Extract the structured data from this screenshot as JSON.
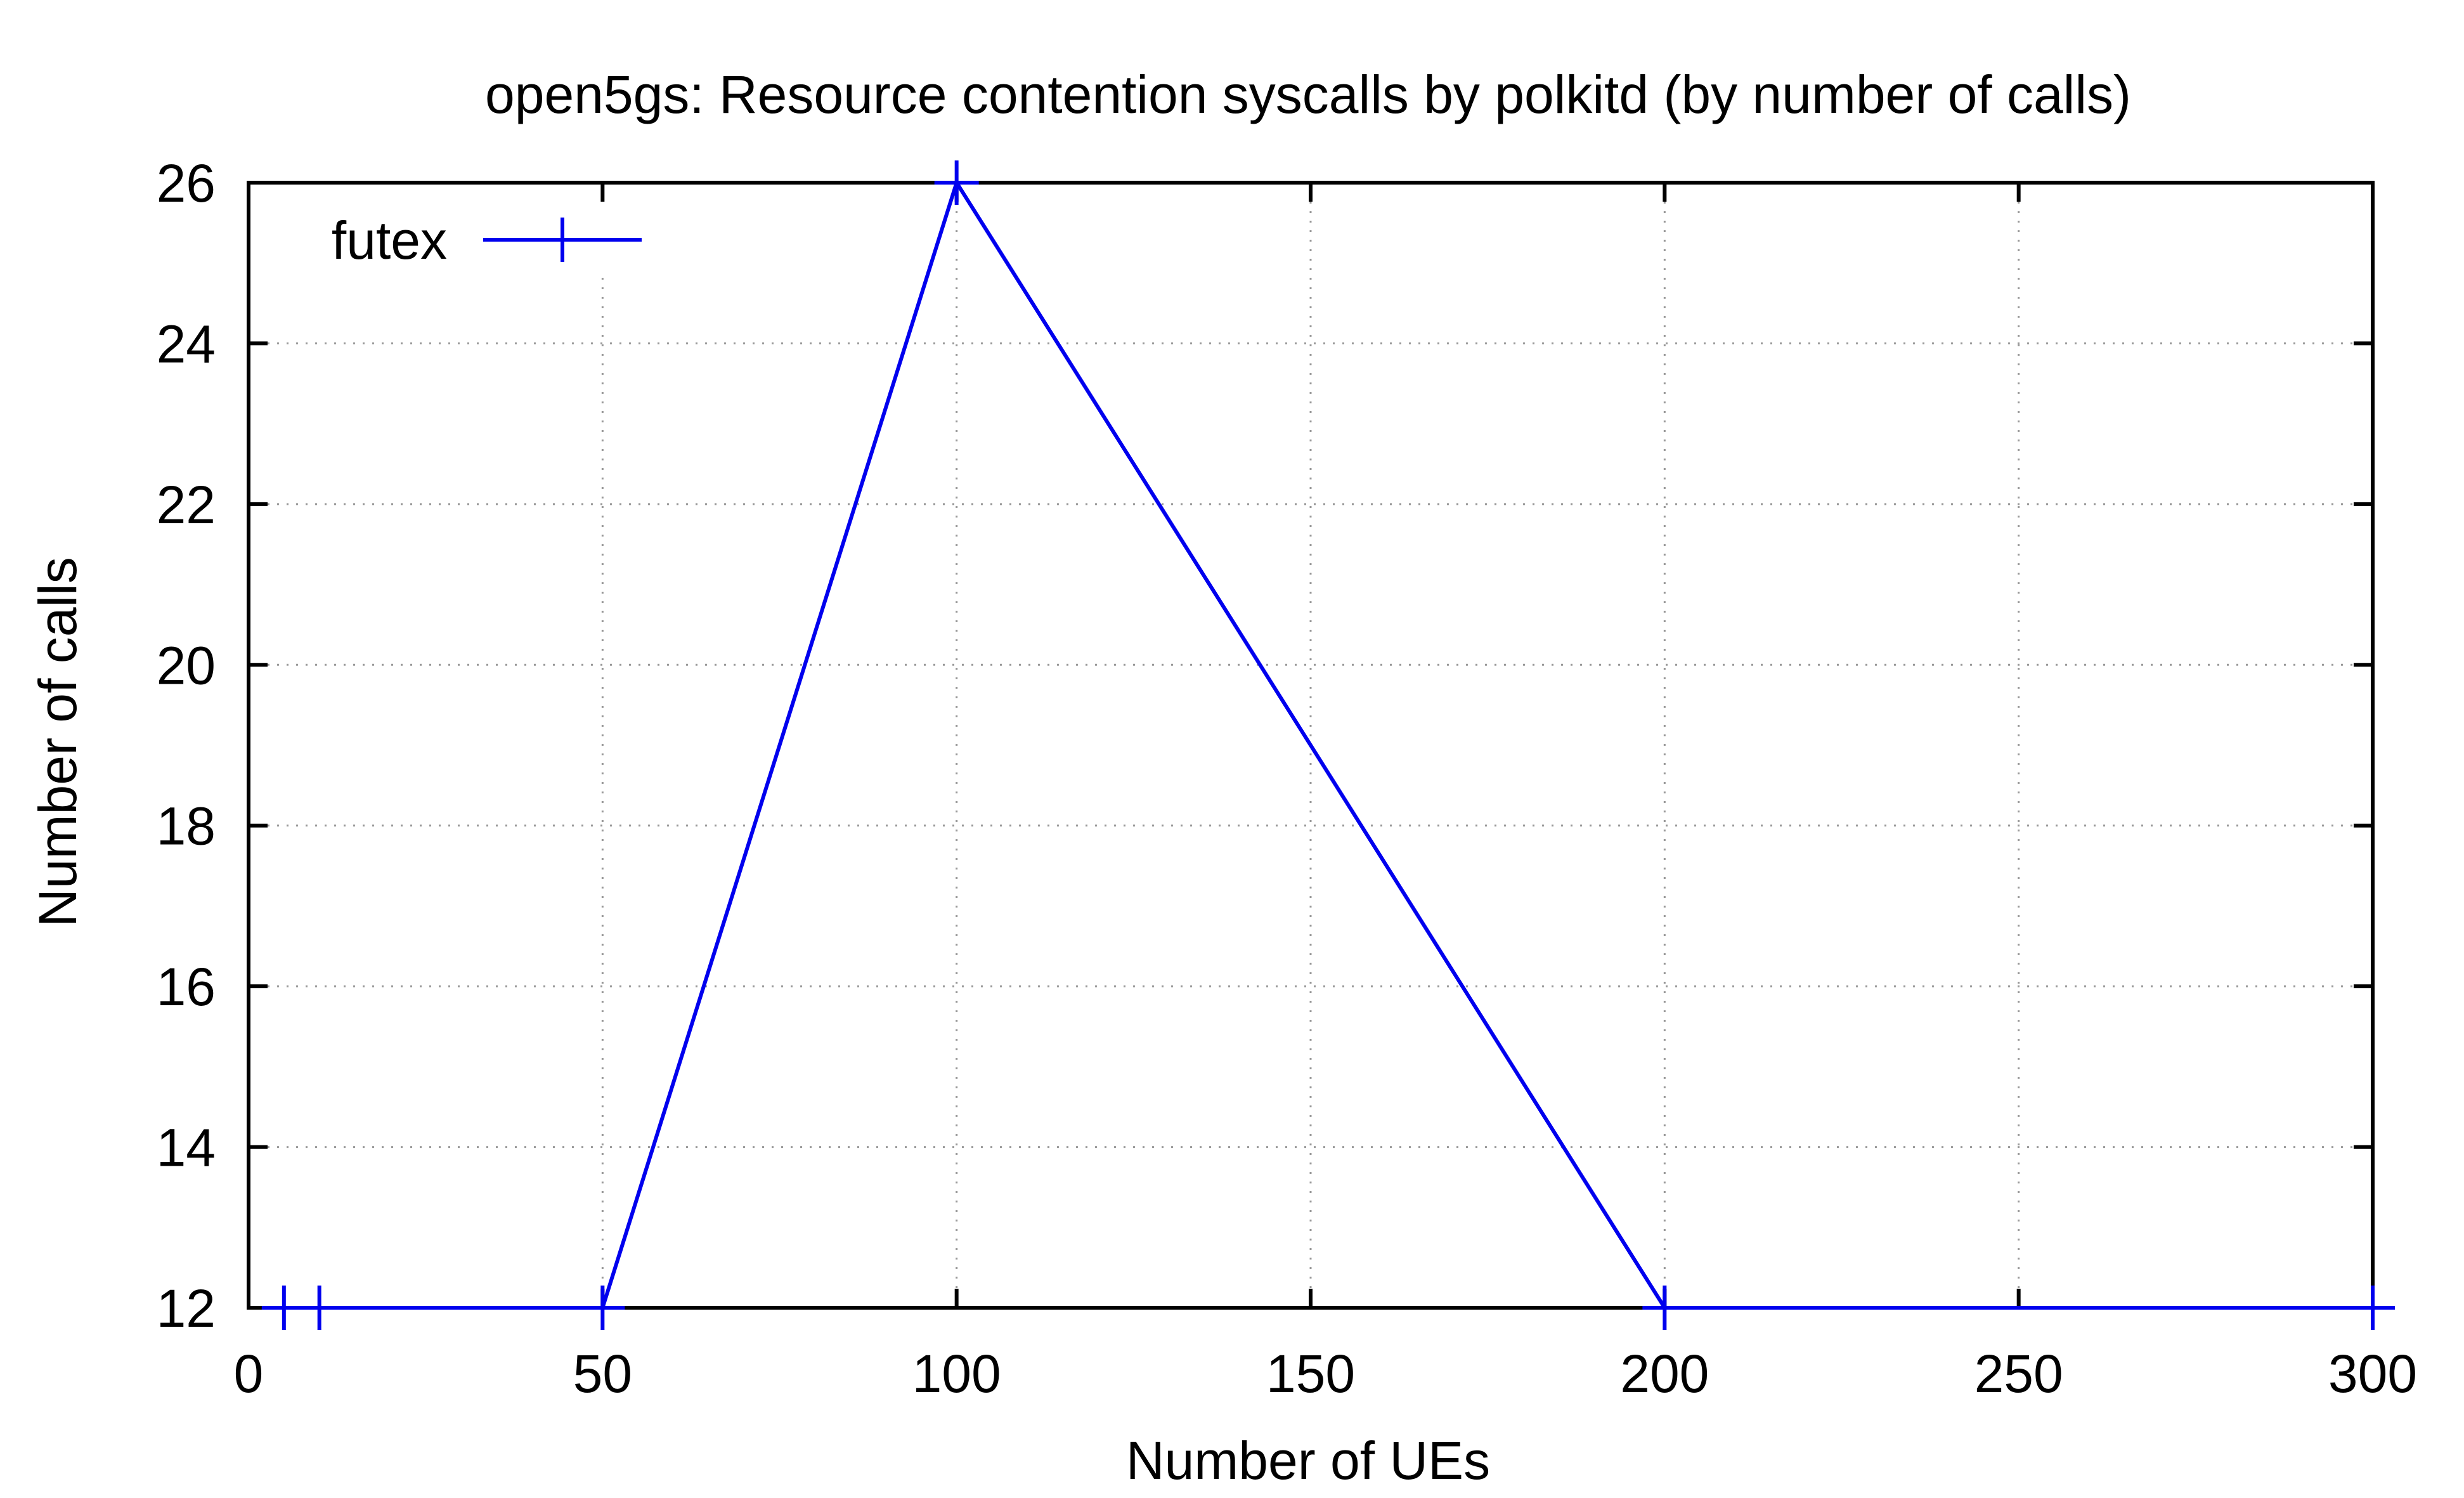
{
  "chart_data": {
    "type": "line",
    "title": "open5gs: Resource contention syscalls by polkitd (by number of calls)",
    "xlabel": "Number of UEs",
    "ylabel": "Number of calls",
    "xlim": [
      0,
      300
    ],
    "ylim": [
      12,
      26
    ],
    "xticks": [
      "0",
      "50",
      "100",
      "150",
      "200",
      "250",
      "300"
    ],
    "yticks": [
      "12",
      "14",
      "16",
      "18",
      "20",
      "22",
      "24",
      "26"
    ],
    "grid": true,
    "legend_position": "top-left",
    "series": [
      {
        "name": "futex",
        "color": "#0000ee",
        "x": [
          5,
          10,
          50,
          100,
          200,
          300
        ],
        "y": [
          12,
          12,
          12,
          26,
          12,
          12
        ]
      }
    ]
  }
}
